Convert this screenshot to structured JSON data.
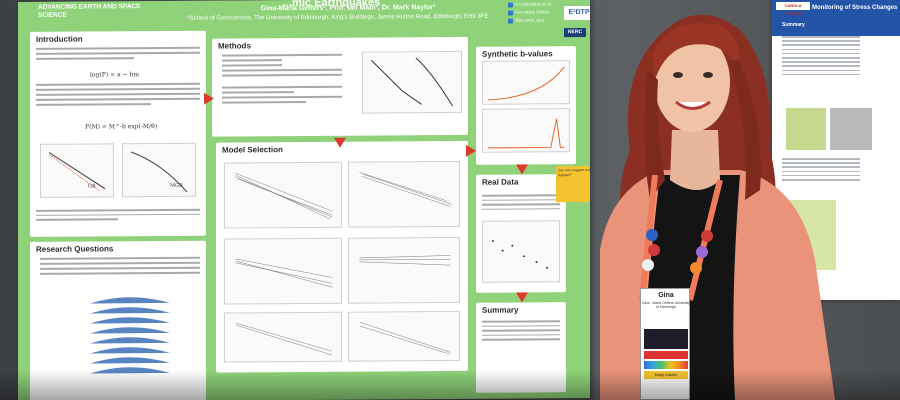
{
  "poster": {
    "logo_text": "ADVANCING EARTH AND SPACE SCIENCE",
    "title": "...mic Earthquakes",
    "authors": "Gina-Maria Geffers¹, Prof. Ian Main¹, Dr. Mark Naylor¹",
    "affiliation": "¹School of Geosciences, The University of Edinburgh, King's Buildings, James Hutton Road, Edinburgh, EH9 3FE",
    "contact": [
      "G.Geffers@ed.ac.uk",
      "Gina-Maria Geffers",
      "@geophys_gina"
    ],
    "edtp_label": "E³DTP",
    "nerc_label": "NERC",
    "sections": {
      "introduction": "Introduction",
      "methods": "Methods",
      "model_selection": "Model Selection",
      "synthetic_b": "Synthetic b-values",
      "real_data": "Real Data",
      "research_questions": "Research Questions",
      "summary": "Summary"
    },
    "equations": {
      "gr": "log(F) = a − bm",
      "gr_label": "GR",
      "mgr_label": "MGR",
      "tgr": "F(M) = M^-b exp(-M/θ)"
    },
    "callout": "Can you suggest a better dataset?"
  },
  "poster2": {
    "logo": "CAROLA CASPAR",
    "title": "Monitoring of Stress Changes",
    "summary": "Summary"
  },
  "badge": {
    "name": "Gina",
    "sub": "Gina - Maria Geffers University of Edinburgh",
    "footer": "Early Career"
  },
  "colors": {
    "poster_green": "#8fd27a",
    "arrow_red": "#d93a2b",
    "cardigan": "#e8937a",
    "hair": "#8a2f22",
    "poster2_blue": "#2454a8"
  }
}
